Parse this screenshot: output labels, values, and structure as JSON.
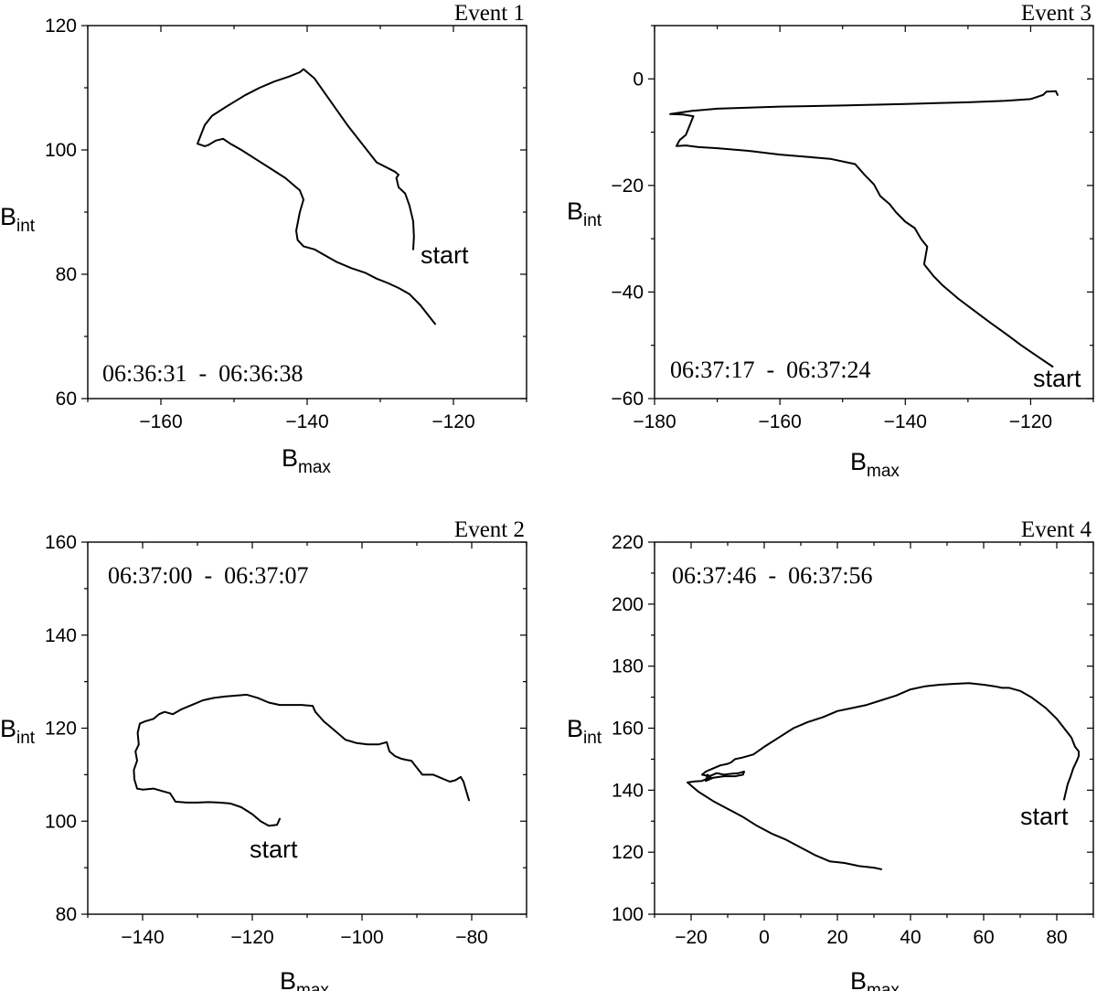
{
  "chart_data": [
    {
      "type": "line",
      "title": "Event 1",
      "xlabel": "B",
      "xlabel_sub": "max",
      "ylabel": "B",
      "ylabel_sub": "int",
      "xlim": [
        -170,
        -110
      ],
      "ylim": [
        60,
        120
      ],
      "xticks": [
        -160,
        -140,
        -120
      ],
      "yticks": [
        60,
        80,
        100,
        120
      ],
      "time_range": "06:36:31  -  06:36:38",
      "start_label": "start",
      "series": [
        {
          "x": [
            -125.5,
            -125.4,
            -125.5,
            -126.0,
            -126.6,
            -127.5,
            -127.8,
            -127.5,
            -128.0,
            -130.5,
            -132.5,
            -134.5,
            -136.0,
            -137.5,
            -139.0,
            -140.5,
            -141.0,
            -142.5,
            -144.5,
            -146.5,
            -148.5,
            -151.0,
            -153.0,
            -154.0,
            -155.0,
            -154.0,
            -153.5,
            -152.5,
            -151.5,
            -150.5,
            -149.0,
            -147.0,
            -145.0,
            -143.0,
            -141.0,
            -140.5,
            -141.0,
            -141.5,
            -141.3,
            -140.5,
            -139.0,
            -137.5,
            -136.0,
            -134.0,
            -132.0,
            -130.5,
            -129.0,
            -127.5,
            -126.0,
            -124.5,
            -123.5,
            -122.5
          ],
          "y": [
            84.0,
            86.0,
            88.5,
            91.0,
            93.0,
            94.0,
            95.5,
            96.0,
            96.5,
            98.0,
            101.0,
            104.0,
            106.5,
            109.0,
            111.5,
            113.0,
            112.5,
            111.8,
            111.0,
            110.0,
            108.8,
            107.0,
            105.5,
            104.0,
            101.0,
            100.6,
            100.8,
            101.5,
            101.8,
            101.0,
            100.0,
            98.5,
            97.0,
            95.5,
            93.5,
            92.0,
            90.0,
            87.0,
            85.5,
            84.5,
            84.0,
            83.0,
            82.0,
            81.0,
            80.2,
            79.3,
            78.6,
            77.8,
            76.8,
            75.0,
            73.5,
            72.0
          ]
        }
      ]
    },
    {
      "type": "line",
      "title": "Event 3",
      "xlabel": "B",
      "xlabel_sub": "max",
      "ylabel": "B",
      "ylabel_sub": "int",
      "xlim": [
        -180,
        -110
      ],
      "ylim": [
        -60,
        10
      ],
      "xticks": [
        -180,
        -160,
        -140,
        -120
      ],
      "yticks": [
        -60,
        -40,
        -20,
        0
      ],
      "time_range": "06:37:17  -  06:37:24",
      "start_label": "start",
      "series": [
        {
          "x": [
            -116.5,
            -119.0,
            -121.5,
            -124.0,
            -126.5,
            -129.0,
            -131.5,
            -134.0,
            -135.5,
            -137.0,
            -136.5,
            -137.5,
            -138.5,
            -140.0,
            -141.5,
            -142.5,
            -144.0,
            -145.0,
            -146.5,
            -148.0,
            -152.0,
            -156.0,
            -160.0,
            -165.0,
            -170.0,
            -173.0,
            -175.0,
            -176.5,
            -176.0,
            -175.0,
            -173.8,
            -175.5,
            -177.5,
            -174.0,
            -170.0,
            -160.0,
            -150.0,
            -140.0,
            -130.0,
            -124.0,
            -120.0,
            -118.0,
            -117.5,
            -116.0,
            -115.7
          ],
          "y": [
            -54.0,
            -52.0,
            -50.0,
            -47.8,
            -45.7,
            -43.5,
            -41.3,
            -38.8,
            -37.0,
            -34.8,
            -31.5,
            -30.0,
            -28.0,
            -26.8,
            -25.0,
            -23.5,
            -22.0,
            -19.8,
            -18.0,
            -16.0,
            -15.0,
            -14.6,
            -14.2,
            -13.5,
            -13.0,
            -12.8,
            -12.5,
            -12.6,
            -11.5,
            -10.5,
            -7.0,
            -6.7,
            -6.6,
            -6.0,
            -5.6,
            -5.2,
            -5.0,
            -4.7,
            -4.4,
            -4.1,
            -3.8,
            -3.0,
            -2.4,
            -2.3,
            -3.0
          ]
        }
      ]
    },
    {
      "type": "line",
      "title": "Event 2",
      "xlabel": "B",
      "xlabel_sub": "max",
      "ylabel": "B",
      "ylabel_sub": "int",
      "xlim": [
        -150,
        -70
      ],
      "ylim": [
        80,
        160
      ],
      "xticks": [
        -140,
        -120,
        -100,
        -80
      ],
      "yticks": [
        80,
        100,
        120,
        140,
        160
      ],
      "time_range": "06:37:00  -  06:37:07",
      "start_label": "start",
      "series": [
        {
          "x": [
            -115.0,
            -115.5,
            -117.0,
            -118.5,
            -120.0,
            -122.0,
            -124.0,
            -126.0,
            -128.0,
            -130.0,
            -132.0,
            -134.0,
            -135.0,
            -136.5,
            -138.0,
            -140.0,
            -141.0,
            -141.5,
            -141.6,
            -141.0,
            -141.3,
            -140.7,
            -140.9,
            -140.5,
            -139.5,
            -138.0,
            -137.0,
            -136.0,
            -134.5,
            -133.0,
            -131.0,
            -129.0,
            -127.0,
            -125.0,
            -123.0,
            -121.0,
            -119.0,
            -117.0,
            -115.0,
            -113.0,
            -111.0,
            -109.0,
            -108.5,
            -107.0,
            -105.0,
            -103.0,
            -101.0,
            -99.0,
            -97.0,
            -95.5,
            -95.0,
            -94.0,
            -93.0,
            -92.0,
            -91.0,
            -90.0,
            -89.0,
            -88.0,
            -87.0,
            -86.0,
            -85.0,
            -84.0,
            -83.0,
            -82.0,
            -81.5,
            -81.0,
            -80.5
          ],
          "y": [
            100.5,
            99.2,
            99.0,
            100.0,
            101.5,
            103.0,
            103.8,
            104.0,
            104.1,
            104.0,
            104.0,
            104.2,
            106.0,
            106.5,
            107.0,
            106.8,
            107.0,
            109.0,
            111.0,
            113.0,
            115.0,
            116.5,
            119.0,
            121.0,
            121.5,
            122.0,
            123.0,
            123.5,
            123.0,
            124.0,
            125.0,
            126.0,
            126.5,
            126.8,
            127.0,
            127.2,
            126.5,
            125.5,
            125.0,
            125.0,
            125.0,
            124.8,
            123.5,
            121.5,
            119.5,
            117.5,
            116.8,
            116.5,
            116.5,
            117.0,
            115.0,
            114.0,
            113.5,
            113.2,
            113.0,
            111.5,
            110.0,
            110.0,
            110.0,
            109.5,
            109.0,
            108.5,
            108.8,
            109.5,
            108.5,
            106.5,
            104.5
          ]
        }
      ]
    },
    {
      "type": "line",
      "title": "Event 4",
      "xlabel": "B",
      "xlabel_sub": "max",
      "ylabel": "B",
      "ylabel_sub": "int",
      "xlim": [
        -30,
        90
      ],
      "ylim": [
        100,
        220
      ],
      "xticks": [
        -20,
        0,
        20,
        40,
        60,
        80
      ],
      "yticks": [
        100,
        120,
        140,
        160,
        180,
        200,
        220
      ],
      "time_range": "06:37:46  -  06:37:56",
      "start_label": "start",
      "series": [
        {
          "x": [
            82.0,
            82.5,
            83.0,
            83.8,
            84.5,
            85.5,
            86.0,
            86.0,
            85.0,
            84.0,
            82.0,
            80.0,
            77.0,
            73.0,
            70.0,
            67.0,
            65.0,
            63.0,
            60.0,
            56.0,
            52.0,
            48.0,
            44.0,
            40.0,
            36.0,
            32.0,
            28.0,
            24.0,
            20.0,
            16.0,
            12.0,
            8.0,
            4.0,
            0.0,
            -3.0,
            -6.0,
            -8.0,
            -9.0,
            -10.0,
            -12.0,
            -14.0,
            -16.0,
            -17.0,
            -15.0,
            -13.0,
            -11.0,
            -9.0,
            -7.0,
            -5.5,
            -5.8,
            -8.0,
            -11.0,
            -14.0,
            -16.0,
            -15.5,
            -14.5,
            -15.5,
            -17.0,
            -19.0,
            -21.0,
            -20.5,
            -20.0,
            -18.0,
            -14.0,
            -10.0,
            -6.0,
            -2.0,
            2.0,
            6.0,
            10.0,
            14.0,
            18.0,
            22.0,
            26.0,
            30.0,
            32.0
          ],
          "y": [
            137.0,
            139.5,
            142.0,
            144.5,
            147.0,
            149.5,
            151.0,
            152.5,
            154.0,
            157.0,
            160.0,
            163.0,
            166.5,
            170.0,
            172.0,
            173.0,
            173.0,
            173.5,
            174.0,
            174.5,
            174.3,
            174.0,
            173.5,
            172.5,
            170.5,
            169.0,
            167.5,
            166.5,
            165.5,
            163.5,
            162.0,
            160.0,
            157.0,
            154.0,
            151.5,
            150.5,
            150.0,
            149.0,
            148.5,
            148.0,
            147.0,
            146.0,
            145.0,
            144.5,
            145.5,
            145.0,
            145.3,
            145.5,
            146.0,
            145.0,
            144.5,
            144.5,
            144.0,
            143.0,
            145.0,
            144.0,
            143.8,
            143.0,
            142.8,
            142.5,
            142.0,
            141.5,
            139.5,
            136.5,
            134.0,
            131.5,
            128.5,
            126.0,
            124.0,
            121.5,
            119.0,
            117.0,
            116.5,
            115.5,
            115.0,
            114.5
          ]
        }
      ]
    }
  ]
}
